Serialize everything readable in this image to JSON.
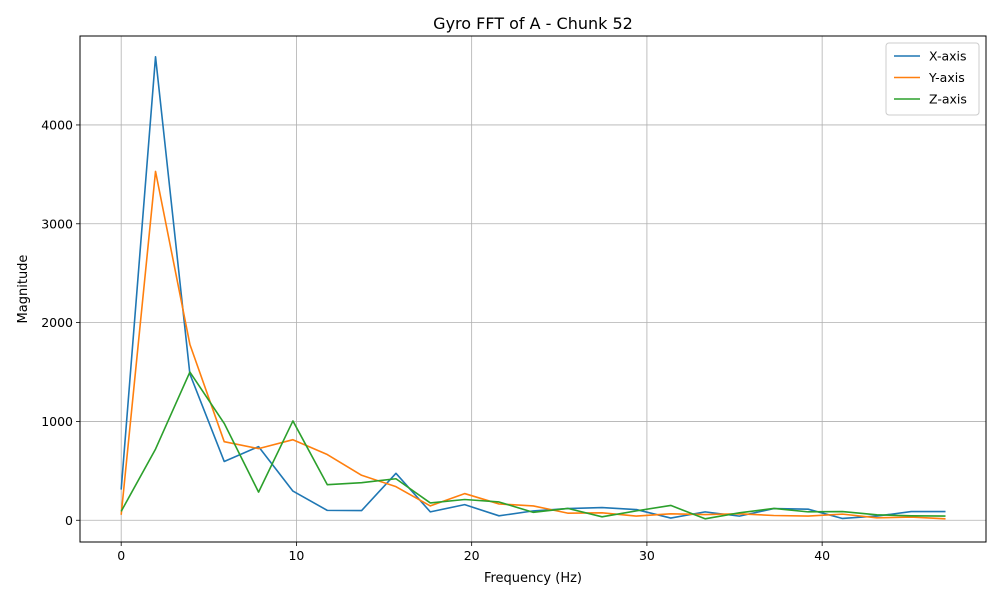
{
  "chart_data": {
    "type": "line",
    "title": "Gyro FFT of A - Chunk 52",
    "xlabel": "Frequency (Hz)",
    "ylabel": "Magnitude",
    "xlim": [
      -2.35,
      49.35
    ],
    "ylim": [
      -220,
      4900
    ],
    "xticks": [
      0,
      10,
      20,
      30,
      40
    ],
    "yticks": [
      0,
      1000,
      2000,
      3000,
      4000
    ],
    "grid": true,
    "legend_position": "top-right",
    "x": [
      0,
      1.96,
      3.92,
      5.88,
      7.84,
      9.8,
      11.76,
      13.72,
      15.68,
      17.64,
      19.6,
      21.56,
      23.52,
      25.48,
      27.44,
      29.4,
      31.36,
      33.32,
      35.28,
      37.24,
      39.2,
      41.16,
      43.12,
      45.08,
      47.04
    ],
    "series": [
      {
        "name": "X-axis",
        "color": "#1f77b4",
        "values": [
          310,
          4690,
          1480,
          595,
          745,
          295,
          100,
          98,
          475,
          85,
          158,
          45,
          95,
          118,
          128,
          108,
          22,
          85,
          42,
          118,
          112,
          18,
          42,
          88,
          88
        ]
      },
      {
        "name": "Y-axis",
        "color": "#ff7f0e",
        "values": [
          55,
          3530,
          1780,
          795,
          725,
          815,
          665,
          455,
          340,
          145,
          270,
          165,
          145,
          72,
          75,
          42,
          65,
          58,
          65,
          48,
          42,
          62,
          25,
          32,
          15
        ]
      },
      {
        "name": "Z-axis",
        "color": "#2ca02c",
        "values": [
          90,
          720,
          1500,
          980,
          285,
          1005,
          360,
          380,
          420,
          175,
          210,
          185,
          80,
          120,
          35,
          95,
          150,
          15,
          75,
          120,
          85,
          88,
          55,
          45,
          42
        ]
      }
    ]
  }
}
